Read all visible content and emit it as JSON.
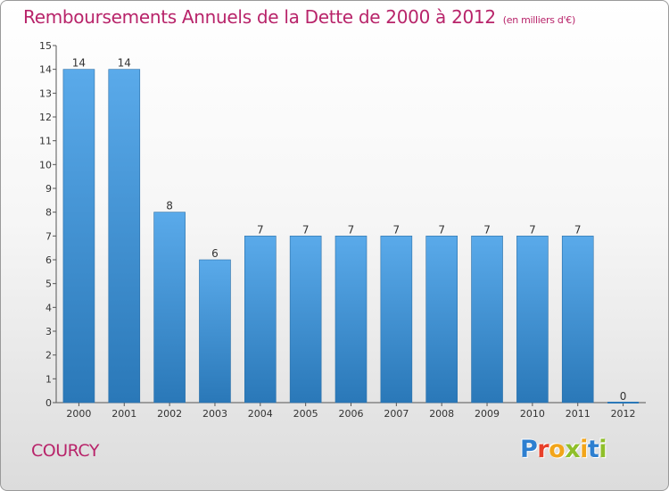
{
  "header": {
    "title": "Remboursements Annuels de la Dette de 2000 à 2012",
    "unit": "(en milliers d'€)"
  },
  "footer": {
    "town": "COURCY",
    "logo_letters": [
      "P",
      "r",
      "o",
      "x",
      "i",
      "t",
      "i"
    ]
  },
  "colors": {
    "title": "#b8246a",
    "bar_light": "#5aaaea",
    "bar_dark": "#2a78b8",
    "logo": [
      "#2d7fd0",
      "#e8402a",
      "#f2a51a",
      "#8fbf2a",
      "#f2a51a",
      "#2d7fd0",
      "#8fbf2a"
    ]
  },
  "chart_data": {
    "type": "bar",
    "categories": [
      "2000",
      "2001",
      "2002",
      "2003",
      "2004",
      "2005",
      "2006",
      "2007",
      "2008",
      "2009",
      "2010",
      "2011",
      "2012"
    ],
    "values": [
      14,
      14,
      8,
      6,
      7,
      7,
      7,
      7,
      7,
      7,
      7,
      7,
      0
    ],
    "ylim": [
      0,
      15
    ],
    "yticks": [
      0,
      1,
      2,
      3,
      4,
      5,
      6,
      7,
      8,
      9,
      10,
      11,
      12,
      13,
      14,
      15
    ],
    "grid": false,
    "legend": "none"
  }
}
